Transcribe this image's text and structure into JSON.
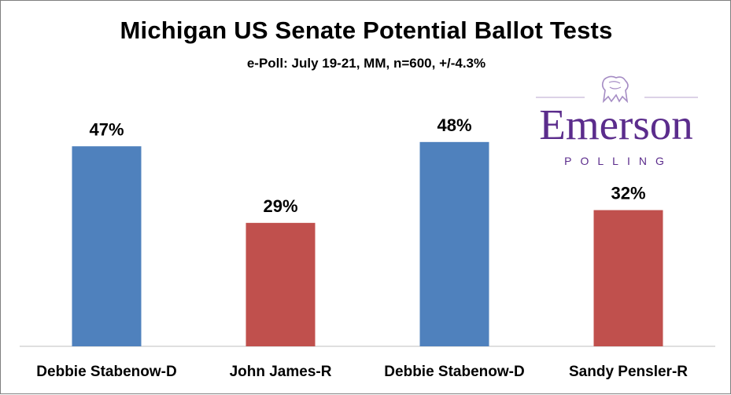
{
  "chart_data": {
    "type": "bar",
    "title": "Michigan US Senate Potential Ballot Tests",
    "subtitle": "e-Poll: July 19-21, MM, n=600, +/-4.3%",
    "categories": [
      "Debbie Stabenow-D",
      "John James-R",
      "Debbie Stabenow-D",
      "Sandy Pensler-R"
    ],
    "values": [
      47,
      29,
      48,
      32
    ],
    "data_labels": [
      "47%",
      "29%",
      "48%",
      "32%"
    ],
    "bar_colors": [
      "#4f81bd",
      "#c0504d",
      "#4f81bd",
      "#c0504d"
    ],
    "ylim": [
      0,
      60
    ],
    "grid": false,
    "legend": "none"
  },
  "logo": {
    "word": "Emerson",
    "sub": "POLLING",
    "color": "#5b2c8c",
    "icon": "lion-crest-icon"
  }
}
